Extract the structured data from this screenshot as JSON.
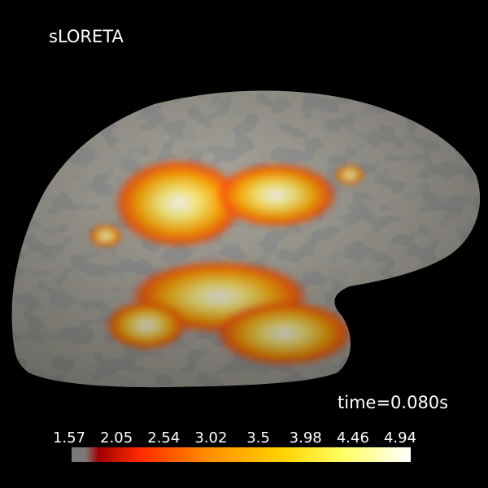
{
  "title": "sLORETA",
  "time_label": "time=0.080s",
  "colorbar": {
    "ticks": [
      1.57,
      2.05,
      2.54,
      3.02,
      3.5,
      3.98,
      4.46,
      4.94
    ]
  }
}
